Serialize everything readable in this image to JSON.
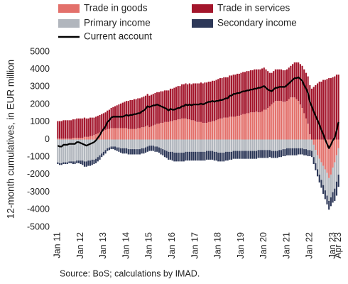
{
  "chart_data": {
    "type": "bar",
    "stacked": true,
    "y_label": "12-month cumulatives, in EUR million",
    "source": "Source: BoS; calculations by IMAD.",
    "ylim": [
      -5000,
      5000
    ],
    "yticks": [
      -5000,
      -4000,
      -3000,
      -2000,
      -1000,
      0,
      1000,
      2000,
      3000,
      4000,
      5000
    ],
    "grid": false,
    "categories": [
      "Jan 11",
      null,
      null,
      null,
      null,
      null,
      null,
      null,
      null,
      null,
      null,
      null,
      "Jan 12",
      null,
      null,
      null,
      null,
      null,
      null,
      null,
      null,
      null,
      null,
      null,
      "Jan 13",
      null,
      null,
      null,
      null,
      null,
      null,
      null,
      null,
      null,
      null,
      null,
      "Jan 14",
      null,
      null,
      null,
      null,
      null,
      null,
      null,
      null,
      null,
      null,
      null,
      "Jan 15",
      null,
      null,
      null,
      null,
      null,
      null,
      null,
      null,
      null,
      null,
      null,
      "Jan 16",
      null,
      null,
      null,
      null,
      null,
      null,
      null,
      null,
      null,
      null,
      null,
      "Jan 17",
      null,
      null,
      null,
      null,
      null,
      null,
      null,
      null,
      null,
      null,
      null,
      "Jan 18",
      null,
      null,
      null,
      null,
      null,
      null,
      null,
      null,
      null,
      null,
      null,
      "Jan 19",
      null,
      null,
      null,
      null,
      null,
      null,
      null,
      null,
      null,
      null,
      null,
      "Jan 20",
      null,
      null,
      null,
      null,
      null,
      null,
      null,
      null,
      null,
      null,
      null,
      "Jan 21",
      null,
      null,
      null,
      null,
      null,
      null,
      null,
      null,
      null,
      null,
      null,
      "Jan 22",
      null,
      null,
      null,
      null,
      null,
      null,
      null,
      null,
      null,
      null,
      null,
      "Jan 23",
      null,
      null,
      "Apr 23"
    ],
    "series": [
      {
        "name": "Trade in goods",
        "color": "#e3706b",
        "values": [
          50,
          50,
          50,
          50,
          50,
          50,
          50,
          50,
          100,
          100,
          100,
          100,
          100,
          100,
          150,
          150,
          150,
          200,
          200,
          250,
          300,
          350,
          400,
          450,
          500,
          550,
          600,
          600,
          650,
          650,
          650,
          650,
          650,
          650,
          650,
          650,
          650,
          600,
          600,
          600,
          600,
          600,
          650,
          650,
          700,
          700,
          750,
          800,
          700,
          750,
          800,
          850,
          900,
          900,
          950,
          950,
          1000,
          1000,
          1000,
          1050,
          1050,
          1100,
          1100,
          1150,
          1150,
          1200,
          1200,
          1200,
          1150,
          1150,
          1100,
          1100,
          1050,
          1000,
          1000,
          1000,
          950,
          950,
          950,
          1000,
          1000,
          1050,
          1050,
          1100,
          1150,
          1200,
          1200,
          1250,
          1250,
          1250,
          1300,
          1300,
          1300,
          1300,
          1350,
          1350,
          1400,
          1450,
          1450,
          1500,
          1500,
          1550,
          1550,
          1550,
          1600,
          1550,
          1550,
          1600,
          1700,
          1700,
          1800,
          1900,
          2000,
          2100,
          2200,
          2200,
          2200,
          2200,
          2150,
          2150,
          2200,
          2300,
          2400,
          2400,
          2400,
          2300,
          2200,
          2000,
          1800,
          1500,
          1200,
          900,
          300,
          0,
          -300,
          -600,
          -900,
          -1100,
          -1300,
          -1500,
          -1700,
          -1900,
          -2200,
          -2000,
          -1600,
          -1300,
          -900,
          -500
        ]
      },
      {
        "name": "Trade in services",
        "color": "#a3162c",
        "values": [
          1000,
          1000,
          1000,
          1050,
          1050,
          1050,
          1050,
          1050,
          1050,
          1050,
          1100,
          1100,
          1100,
          1100,
          1100,
          1050,
          1050,
          1050,
          1050,
          1000,
          1000,
          1000,
          1000,
          1000,
          1000,
          1000,
          1050,
          1100,
          1150,
          1200,
          1250,
          1300,
          1350,
          1400,
          1450,
          1500,
          1550,
          1600,
          1650,
          1650,
          1700,
          1700,
          1700,
          1700,
          1700,
          1750,
          1750,
          1800,
          1800,
          1800,
          1800,
          1800,
          1800,
          1800,
          1800,
          1800,
          1800,
          1800,
          1800,
          1850,
          1850,
          1850,
          1900,
          1900,
          1900,
          1950,
          1950,
          2000,
          2000,
          2050,
          2050,
          2100,
          2150,
          2200,
          2200,
          2250,
          2250,
          2300,
          2300,
          2300,
          2300,
          2300,
          2300,
          2300,
          2300,
          2300,
          2300,
          2300,
          2300,
          2300,
          2350,
          2350,
          2400,
          2400,
          2400,
          2400,
          2400,
          2400,
          2400,
          2400,
          2400,
          2400,
          2400,
          2450,
          2400,
          2450,
          2450,
          2450,
          2400,
          2300,
          2100,
          1900,
          1800,
          1800,
          1800,
          1800,
          1800,
          1800,
          1800,
          1800,
          1800,
          1800,
          1800,
          1900,
          2000,
          2100,
          2200,
          2300,
          2400,
          2500,
          2600,
          2700,
          2800,
          2900,
          3000,
          3100,
          3200,
          3300,
          3300,
          3400,
          3400,
          3450,
          3500,
          3500,
          3550,
          3600,
          3700,
          3700
        ]
      },
      {
        "name": "Primary income",
        "color": "#b1b6bd",
        "values": [
          -1300,
          -1350,
          -1350,
          -1300,
          -1300,
          -1300,
          -1250,
          -1250,
          -1250,
          -1250,
          -1200,
          -1200,
          -1200,
          -1200,
          -1250,
          -1250,
          -1200,
          -1200,
          -1150,
          -1150,
          -1100,
          -1000,
          -900,
          -800,
          -700,
          -600,
          -500,
          -450,
          -400,
          -400,
          -400,
          -450,
          -450,
          -500,
          -500,
          -500,
          -500,
          -550,
          -550,
          -550,
          -550,
          -550,
          -550,
          -550,
          -500,
          -500,
          -450,
          -400,
          -350,
          -350,
          -350,
          -400,
          -400,
          -450,
          -500,
          -550,
          -600,
          -650,
          -700,
          -700,
          -700,
          -750,
          -750,
          -750,
          -750,
          -750,
          -750,
          -700,
          -700,
          -700,
          -700,
          -700,
          -700,
          -700,
          -700,
          -700,
          -700,
          -700,
          -650,
          -650,
          -650,
          -650,
          -700,
          -700,
          -750,
          -750,
          -750,
          -750,
          -700,
          -700,
          -700,
          -700,
          -650,
          -650,
          -650,
          -650,
          -650,
          -650,
          -650,
          -650,
          -650,
          -650,
          -650,
          -650,
          -650,
          -600,
          -600,
          -600,
          -600,
          -600,
          -600,
          -600,
          -650,
          -650,
          -650,
          -650,
          -600,
          -600,
          -550,
          -550,
          -500,
          -500,
          -500,
          -500,
          -500,
          -500,
          -500,
          -500,
          -500,
          -550,
          -550,
          -600,
          -600,
          -650,
          -700,
          -750,
          -800,
          -900,
          -1000,
          -1100,
          -1200,
          -1300,
          -1300,
          -1300,
          -1400,
          -1500,
          -1500,
          -1500
        ]
      },
      {
        "name": "Secondary income",
        "color": "#2d3858",
        "values": [
          -100,
          -100,
          -100,
          -100,
          -100,
          -100,
          -100,
          -100,
          -150,
          -150,
          -150,
          -150,
          -200,
          -250,
          -300,
          -300,
          -300,
          -300,
          -300,
          -250,
          -250,
          -250,
          -250,
          -200,
          -200,
          -200,
          -150,
          -150,
          -150,
          -150,
          -200,
          -200,
          -250,
          -250,
          -300,
          -300,
          -300,
          -300,
          -300,
          -300,
          -300,
          -300,
          -300,
          -300,
          -300,
          -300,
          -300,
          -300,
          -300,
          -300,
          -300,
          -300,
          -300,
          -300,
          -350,
          -350,
          -400,
          -400,
          -450,
          -450,
          -500,
          -500,
          -500,
          -500,
          -500,
          -500,
          -500,
          -500,
          -500,
          -500,
          -500,
          -500,
          -500,
          -500,
          -500,
          -500,
          -500,
          -500,
          -500,
          -500,
          -500,
          -500,
          -500,
          -500,
          -500,
          -500,
          -500,
          -500,
          -500,
          -500,
          -450,
          -450,
          -450,
          -450,
          -450,
          -450,
          -450,
          -450,
          -450,
          -450,
          -450,
          -450,
          -450,
          -450,
          -450,
          -450,
          -450,
          -450,
          -450,
          -450,
          -450,
          -400,
          -400,
          -400,
          -400,
          -400,
          -400,
          -400,
          -400,
          -400,
          -400,
          -400,
          -400,
          -400,
          -400,
          -400,
          -350,
          -350,
          -350,
          -350,
          -350,
          -350,
          -350,
          -350,
          -400,
          -400,
          -400,
          -450,
          -450,
          -500,
          -500,
          -500,
          -500,
          -500,
          -600,
          -700,
          -800,
          -700
        ]
      },
      {
        "name": "Current account",
        "type": "line",
        "color": "#000000",
        "values": [
          -350,
          -400,
          -400,
          -300,
          -300,
          -300,
          -250,
          -250,
          -250,
          -250,
          -150,
          -150,
          -200,
          -250,
          -300,
          -350,
          -300,
          -250,
          -200,
          -150,
          -50,
          100,
          250,
          450,
          600,
          750,
          1000,
          1100,
          1250,
          1300,
          1300,
          1300,
          1300,
          1300,
          1300,
          1350,
          1400,
          1350,
          1400,
          1400,
          1450,
          1450,
          1500,
          1500,
          1600,
          1650,
          1750,
          1900,
          1850,
          1900,
          1950,
          1950,
          2000,
          1950,
          1900,
          1850,
          1800,
          1750,
          1650,
          1750,
          1700,
          1700,
          1750,
          1800,
          1800,
          1900,
          1900,
          2000,
          1950,
          2000,
          1950,
          2000,
          2000,
          2000,
          2000,
          2050,
          2000,
          2050,
          2100,
          2150,
          2150,
          2200,
          2150,
          2200,
          2200,
          2250,
          2250,
          2300,
          2350,
          2350,
          2500,
          2500,
          2600,
          2600,
          2650,
          2650,
          2700,
          2750,
          2750,
          2800,
          2800,
          2850,
          2850,
          2900,
          2900,
          2950,
          2950,
          3000,
          3050,
          2950,
          2850,
          2800,
          2750,
          2850,
          2950,
          2950,
          3000,
          3000,
          3000,
          3000,
          3100,
          3200,
          3300,
          3400,
          3500,
          3500,
          3550,
          3450,
          3350,
          3100,
          2900,
          2650,
          2150,
          1900,
          1600,
          1350,
          1100,
          850,
          550,
          300,
          0,
          -250,
          -500,
          -300,
          -50,
          100,
          500,
          1000
        ]
      }
    ]
  }
}
